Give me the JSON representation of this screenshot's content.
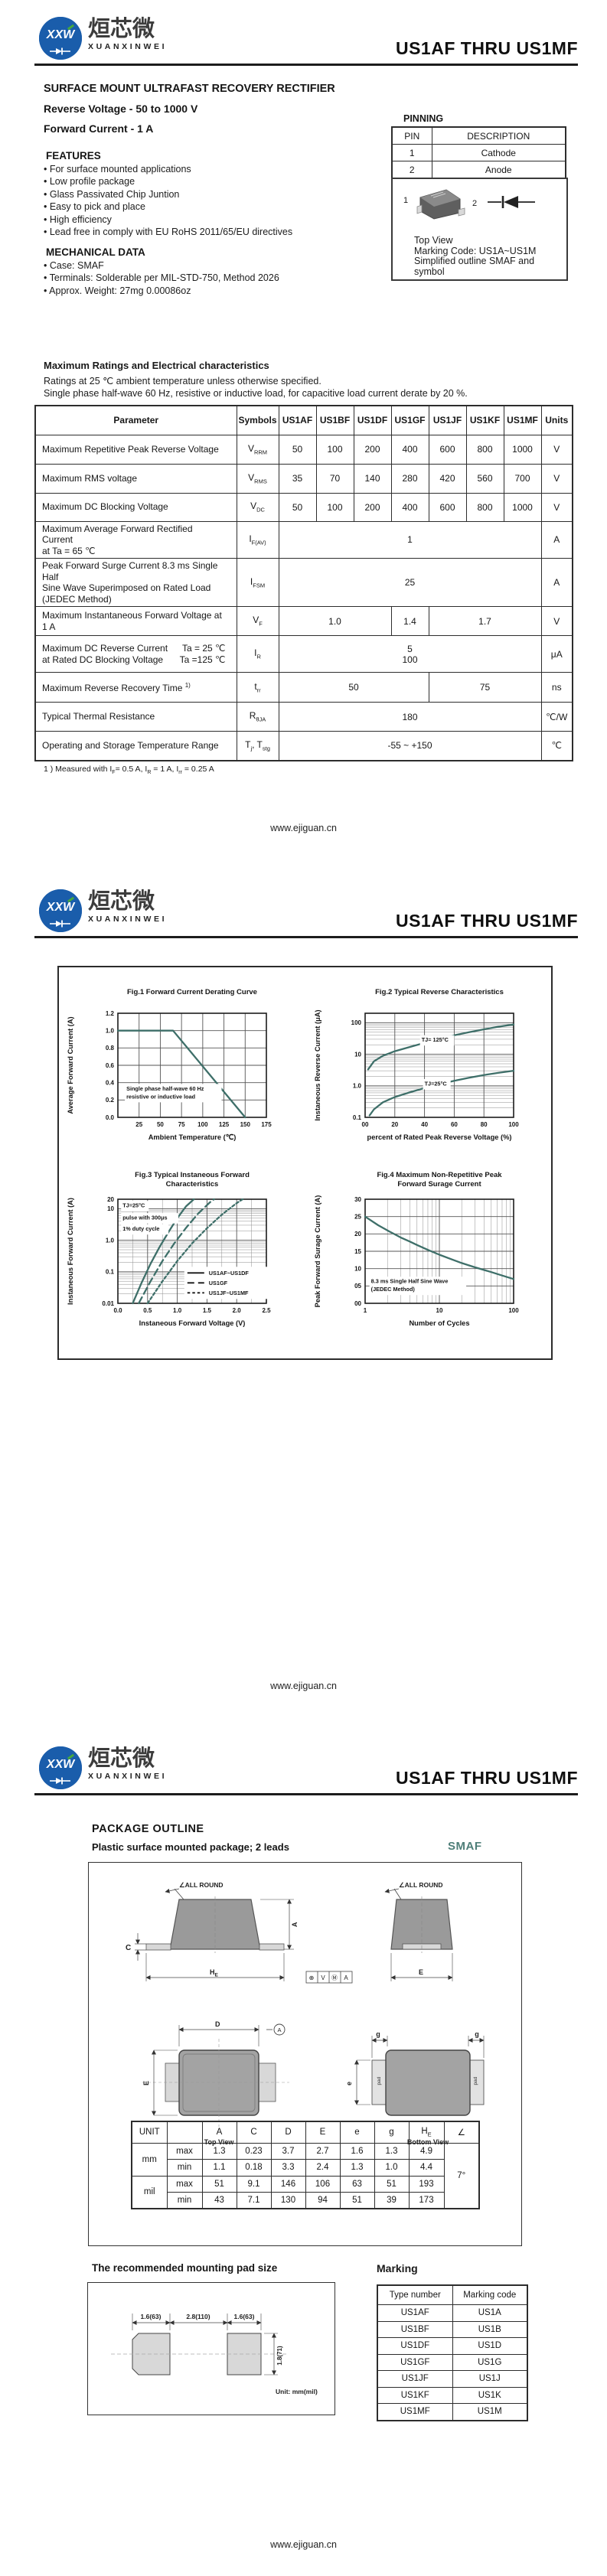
{
  "brand": {
    "logo_monogram": "XXW",
    "logo_cn": "烜芯微",
    "logo_en": "XUANXINWEI",
    "website": "www.ejiguan.cn"
  },
  "doc": {
    "title": "US1AF  THRU  US1MF",
    "subtitle": "SURFACE MOUNT ULTRAFAST RECOVERY RECTIFIER",
    "reverse_voltage": "Reverse Voltage - 50 to 1000 V",
    "forward_current": "Forward Current - 1 A"
  },
  "features": {
    "heading": "FEATURES",
    "items": [
      "For surface mounted applications",
      "Low profile package",
      "Glass Passivated Chip Juntion",
      "Easy to pick and place",
      "High efficiency",
      "Lead free in comply with EU RoHS 2011/65/EU directives"
    ]
  },
  "mechanical": {
    "heading": "MECHANICAL DATA",
    "items": [
      "Case: SMAF",
      "Terminals: Solderable per MIL-STD-750, Method 2026",
      "Approx. Weight: 27mg  0.00086oz"
    ]
  },
  "pinning": {
    "heading": "PINNING",
    "headers": [
      "PIN",
      "DESCRIPTION"
    ],
    "rows": [
      [
        "1",
        "Cathode"
      ],
      [
        "2",
        "Anode"
      ]
    ]
  },
  "outline_note": {
    "pin1": "1",
    "pin2": "2",
    "lines": [
      "Top View",
      "Marking Code: US1A~US1M",
      "Simplified outline SMAF and symbol"
    ]
  },
  "ratings": {
    "heading": "Maximum Ratings and Electrical characteristics",
    "note1": "Ratings at 25 ℃ ambient temperature unless otherwise specified.",
    "note2": "Single phase half-wave 60 Hz, resistive or inductive load, for capacitive load current derate by 20 %.",
    "headers": [
      "Parameter",
      "Symbols",
      "US1AF",
      "US1BF",
      "US1DF",
      "US1GF",
      "US1JF",
      "US1KF",
      "US1MF",
      "Units"
    ],
    "rows": [
      {
        "h": 38,
        "param": [
          {
            "t": "Maximum Repetitive Peak Reverse Voltage"
          }
        ],
        "sym": [
          {
            "m": "V",
            "s": "RRM"
          }
        ],
        "cells": [
          {
            "v": "50"
          },
          {
            "v": "100"
          },
          {
            "v": "200"
          },
          {
            "v": "400"
          },
          {
            "v": "600"
          },
          {
            "v": "800"
          },
          {
            "v": "1000"
          }
        ],
        "unit": "V"
      },
      {
        "h": 38,
        "param": [
          {
            "t": "Maximum RMS voltage"
          }
        ],
        "sym": [
          {
            "m": "V",
            "s": "RMS"
          }
        ],
        "cells": [
          {
            "v": "35"
          },
          {
            "v": "70"
          },
          {
            "v": "140"
          },
          {
            "v": "280"
          },
          {
            "v": "420"
          },
          {
            "v": "560"
          },
          {
            "v": "700"
          }
        ],
        "unit": "V"
      },
      {
        "h": 37,
        "param": [
          {
            "t": "Maximum DC Blocking Voltage"
          }
        ],
        "sym": [
          {
            "m": "V",
            "s": "DC"
          }
        ],
        "cells": [
          {
            "v": "50"
          },
          {
            "v": "100"
          },
          {
            "v": "200"
          },
          {
            "v": "400"
          },
          {
            "v": "600"
          },
          {
            "v": "800"
          },
          {
            "v": "1000"
          }
        ],
        "unit": "V"
      },
      {
        "h": 42,
        "param": [
          {
            "t": "Maximum Average Forward Rectified Current"
          },
          {
            "t": "at Ta = 65 ℃"
          }
        ],
        "sym": [
          {
            "m": "I",
            "s": "F(AV)"
          }
        ],
        "cells": [
          {
            "v": "1",
            "span": 7
          }
        ],
        "unit": "A"
      },
      {
        "h": 60,
        "param": [
          {
            "t": "Peak Forward Surge Current 8.3 ms Single Half"
          },
          {
            "t": "Sine Wave Superimposed on Rated Load"
          },
          {
            "t": "(JEDEC Method)"
          }
        ],
        "sym": [
          {
            "m": "I",
            "s": "FSM"
          }
        ],
        "cells": [
          {
            "v": "25",
            "span": 7
          }
        ],
        "unit": "A"
      },
      {
        "h": 38,
        "param": [
          {
            "t": "Maximum Instantaneous Forward Voltage at 1 A"
          }
        ],
        "sym": [
          {
            "m": "V",
            "s": "F"
          }
        ],
        "cells": [
          {
            "v": "1.0",
            "span": 3
          },
          {
            "v": "1.4",
            "span": 1
          },
          {
            "v": "1.7",
            "span": 3
          }
        ],
        "unit": "V"
      },
      {
        "h": 48,
        "param": [
          {
            "t": "Maximum DC Reverse Current",
            "c": "Ta = 25 ℃"
          },
          {
            "t": "at Rated DC Blocking Voltage",
            "c": "Ta =125 ℃"
          }
        ],
        "sym": [
          {
            "m": "I",
            "s": "R"
          }
        ],
        "cells": [
          {
            "v": "5\n100",
            "span": 7
          }
        ],
        "unit": "μA"
      },
      {
        "h": 39,
        "param": [
          {
            "t": "Maximum Reverse Recovery Time ",
            "sup": "1)"
          }
        ],
        "sym": [
          {
            "m": "t",
            "s": "rr"
          }
        ],
        "cells": [
          {
            "v": "50",
            "span": 4
          },
          {
            "v": "75",
            "span": 3
          }
        ],
        "unit": "ns"
      },
      {
        "h": 38,
        "param": [
          {
            "t": "Typical Thermal Resistance"
          }
        ],
        "sym": [
          {
            "m": "R",
            "s": "θJA"
          }
        ],
        "cells": [
          {
            "v": "180",
            "span": 7
          }
        ],
        "unit": "℃/W"
      },
      {
        "h": 38,
        "param": [
          {
            "t": "Operating and Storage Temperature Range"
          }
        ],
        "sym": [
          {
            "m": "T",
            "s": "j"
          },
          {
            "m": ", T",
            "s": "stg"
          }
        ],
        "cells": [
          {
            "v": "-55 ~ +150",
            "span": 7
          }
        ],
        "unit": "℃"
      }
    ],
    "footnote_parts": [
      {
        "t": "1 ) Measured with I"
      },
      {
        "s": "F"
      },
      {
        "t": "= 0.5 A, I"
      },
      {
        "s": "R"
      },
      {
        "t": " = 1 A, I"
      },
      {
        "s": "rr"
      },
      {
        "t": " = 0.25 A"
      }
    ]
  },
  "package": {
    "heading": "PACKAGE  OUTLINE",
    "subheading": "Plastic surface mounted package; 2 leads",
    "case": "SMAF",
    "labels": {
      "all_round": "∠ALL ROUND",
      "A": "A",
      "C": "C",
      "D": "D",
      "E": "E",
      "e": "e",
      "g": "g",
      "he_main": "H",
      "he_sub": "E",
      "pad": "pad",
      "top_view": "Top View",
      "bottom_view": "Bottom View",
      "datum": [
        "⊕",
        "V",
        "Ⓜ",
        "A"
      ],
      "datum_ref": "A"
    },
    "dim_table": {
      "headers": [
        "UNIT",
        "",
        "A",
        "C",
        "D",
        "E",
        "e",
        "g",
        "H_E",
        "∠"
      ],
      "unit_mm": "mm",
      "unit_mil": "mil",
      "max": "max",
      "min": "min",
      "rows_mm": [
        [
          "1.3",
          "0.23",
          "3.7",
          "2.7",
          "1.6",
          "1.3",
          "4.9"
        ],
        [
          "1.1",
          "0.18",
          "3.3",
          "2.4",
          "1.3",
          "1.0",
          "4.4"
        ]
      ],
      "rows_mil": [
        [
          "51",
          "9.1",
          "146",
          "106",
          "63",
          "51",
          "193"
        ],
        [
          "43",
          "7.1",
          "130",
          "94",
          "51",
          "39",
          "173"
        ]
      ],
      "angle": "7°"
    }
  },
  "pad_size": {
    "heading": "The recommended mounting pad size",
    "dim_left": "1.6(63)",
    "dim_center": "2.8(110)",
    "dim_right": "1.6(63)",
    "dim_height": "1.8(71)",
    "unit_note": "Unit:  mm(mil)"
  },
  "marking": {
    "heading": "Marking",
    "headers": [
      "Type number",
      "Marking code"
    ],
    "rows": [
      [
        "US1AF",
        "US1A"
      ],
      [
        "US1BF",
        "US1B"
      ],
      [
        "US1DF",
        "US1D"
      ],
      [
        "US1GF",
        "US1G"
      ],
      [
        "US1JF",
        "US1J"
      ],
      [
        "US1KF",
        "US1K"
      ],
      [
        "US1MF",
        "US1M"
      ]
    ]
  },
  "colors": {
    "curve": "#3E6F69",
    "accent_blue": "#1a5dab",
    "smaf_teal": "#4e7e78"
  },
  "chart_data": [
    {
      "id": "fig1",
      "type": "line",
      "title_lines": [
        "Fig.1  Forward Current Derating Curve"
      ],
      "xlabel": "Ambient Temperature (℃)",
      "ylabel": "Average Forward Current  (A)",
      "x": {
        "scale": "linear",
        "min": 0,
        "max": 175,
        "ticks": [
          25,
          50,
          75,
          100,
          125,
          150,
          175
        ],
        "tick_labels": [
          "25",
          "50",
          "75",
          "100",
          "125",
          "150",
          "175"
        ]
      },
      "y": {
        "scale": "linear",
        "min": 0,
        "max": 1.2,
        "ticks": [
          0,
          0.2,
          0.4,
          0.6,
          0.8,
          1.0,
          1.2
        ],
        "tick_labels": [
          "0.0",
          "0.2",
          "0.4",
          "0.6",
          "0.8",
          "1.0",
          "1.2"
        ]
      },
      "series": [
        {
          "name": "derating",
          "dash": "solid",
          "points": [
            [
              0,
              1.0
            ],
            [
              65,
              1.0
            ],
            [
              150,
              0
            ]
          ]
        }
      ],
      "annotations": [
        {
          "x": 10,
          "y": 0.31,
          "lines": [
            "Single phase half-wave 60 Hz",
            "resistive or inductive load"
          ]
        }
      ]
    },
    {
      "id": "fig2",
      "type": "line",
      "title_lines": [
        "Fig.2  Typical Reverse Characteristics"
      ],
      "xlabel": "percent of Rated Peak Reverse Voltage (%)",
      "ylabel": "Instaneous Reverse Current (μA)",
      "x": {
        "scale": "linear",
        "min": 0,
        "max": 100,
        "ticks": [
          0,
          20,
          40,
          60,
          80,
          100
        ],
        "tick_labels": [
          "00",
          "20",
          "40",
          "60",
          "80",
          "100"
        ]
      },
      "y": {
        "scale": "log",
        "min": 0.1,
        "max": 200,
        "ticks": [
          0.1,
          1,
          10,
          100
        ],
        "tick_labels": [
          "0.1",
          "1.0",
          "10",
          "100"
        ]
      },
      "series": [
        {
          "name": "TJ=125°C",
          "dash": "solid",
          "points": [
            [
              2,
              3.3
            ],
            [
              6,
              6
            ],
            [
              12,
              9
            ],
            [
              20,
              12.5
            ],
            [
              30,
              17
            ],
            [
              40,
              23
            ],
            [
              50,
              30
            ],
            [
              60,
              40
            ],
            [
              70,
              50
            ],
            [
              80,
              62
            ],
            [
              90,
              75
            ],
            [
              100,
              88
            ]
          ]
        },
        {
          "name": "TJ=25°C",
          "dash": "solid",
          "points": [
            [
              3,
              0.115
            ],
            [
              6,
              0.18
            ],
            [
              12,
              0.3
            ],
            [
              20,
              0.44
            ],
            [
              30,
              0.62
            ],
            [
              40,
              0.85
            ],
            [
              50,
              1.12
            ],
            [
              60,
              1.45
            ],
            [
              70,
              1.8
            ],
            [
              80,
              2.2
            ],
            [
              90,
              2.6
            ],
            [
              100,
              3.0
            ]
          ]
        }
      ],
      "annotations": [
        {
          "x": 38,
          "y": 25,
          "lines": [
            "TJ= 125°C"
          ]
        },
        {
          "x": 40,
          "y": 1.02,
          "lines": [
            "TJ=25°C"
          ]
        }
      ]
    },
    {
      "id": "fig3",
      "type": "line",
      "title_lines": [
        "Fig.3  Typical Instaneous Forward",
        "Characteristics"
      ],
      "xlabel": "Instaneous Forward Voltage (V)",
      "ylabel": "Instaneous Forward Current (A)",
      "x": {
        "scale": "linear",
        "min": 0,
        "max": 2.5,
        "ticks": [
          0,
          0.5,
          1.0,
          1.5,
          2.0,
          2.5
        ],
        "tick_labels": [
          "0.0",
          "0.5",
          "1.0",
          "1.5",
          "2.0",
          "2.5"
        ],
        "minor_step": 0.25
      },
      "y": {
        "scale": "log",
        "min": 0.01,
        "max": 20,
        "ticks": [
          0.01,
          0.1,
          1,
          10,
          20
        ],
        "tick_labels": [
          "0.01",
          "0.1",
          "1.0",
          "10",
          "20"
        ]
      },
      "series": [
        {
          "name": "US1AF~US1DF",
          "dash": "solid",
          "points": [
            [
              0.25,
              0.01
            ],
            [
              0.4,
              0.045
            ],
            [
              0.55,
              0.18
            ],
            [
              0.7,
              0.6
            ],
            [
              0.85,
              1.8
            ],
            [
              1.0,
              5
            ],
            [
              1.15,
              12
            ],
            [
              1.28,
              20
            ]
          ]
        },
        {
          "name": "US1GF",
          "dash": "long",
          "points": [
            [
              0.35,
              0.01
            ],
            [
              0.55,
              0.05
            ],
            [
              0.75,
              0.22
            ],
            [
              0.95,
              0.8
            ],
            [
              1.15,
              2.5
            ],
            [
              1.35,
              7
            ],
            [
              1.55,
              16
            ],
            [
              1.62,
              20
            ]
          ]
        },
        {
          "name": "US1JF~US1MF",
          "dash": "short",
          "points": [
            [
              0.5,
              0.01
            ],
            [
              0.75,
              0.05
            ],
            [
              1.0,
              0.22
            ],
            [
              1.25,
              0.8
            ],
            [
              1.5,
              2.4
            ],
            [
              1.75,
              6.5
            ],
            [
              2.0,
              15
            ],
            [
              2.1,
              20
            ]
          ]
        }
      ],
      "annotations": [
        {
          "x": 0.08,
          "y": 11,
          "lines": [
            "TJ=25°C"
          ]
        },
        {
          "x": 0.08,
          "y": 4.5,
          "lines": [
            "pulse with 300μs"
          ]
        },
        {
          "x": 0.08,
          "y": 2.0,
          "lines": [
            "1% duty cycle"
          ]
        }
      ],
      "legend": {
        "x": 1.17,
        "y": 0.115,
        "entries": [
          {
            "dash": "solid",
            "label": "US1AF~US1DF"
          },
          {
            "dash": "long",
            "label": "US1GF"
          },
          {
            "dash": "short",
            "label": "US1JF~US1MF"
          }
        ]
      }
    },
    {
      "id": "fig4",
      "type": "line",
      "title_lines": [
        "Fig.4  Maximum Non-Repetitive Peak",
        "Forward Surage Current"
      ],
      "xlabel": "Number of Cycles",
      "ylabel": "Peak Forward Surage Current (A)",
      "x": {
        "scale": "log",
        "min": 1,
        "max": 100,
        "ticks": [
          1,
          10,
          100
        ],
        "tick_labels": [
          "1",
          "10",
          "100"
        ]
      },
      "y": {
        "scale": "linear",
        "min": 0,
        "max": 30,
        "ticks": [
          0,
          5,
          10,
          15,
          20,
          25,
          30
        ],
        "tick_labels": [
          "00",
          "05",
          "10",
          "15",
          "20",
          "25",
          "30"
        ]
      },
      "series": [
        {
          "name": "surge",
          "dash": "solid",
          "points": [
            [
              1,
              25
            ],
            [
              1.5,
              22.5
            ],
            [
              2,
              21
            ],
            [
              3,
              19
            ],
            [
              4,
              17.8
            ],
            [
              5,
              16.8
            ],
            [
              7,
              15.4
            ],
            [
              10,
              14
            ],
            [
              15,
              12.6
            ],
            [
              20,
              11.6
            ],
            [
              30,
              10.4
            ],
            [
              50,
              9
            ],
            [
              70,
              8
            ],
            [
              100,
              7
            ]
          ]
        }
      ],
      "annotations": [
        {
          "x": 1.2,
          "y": 5.8,
          "lines": [
            "8.3 ms Single Half Sine Wave",
            "(JEDEC Method)"
          ]
        }
      ]
    }
  ]
}
